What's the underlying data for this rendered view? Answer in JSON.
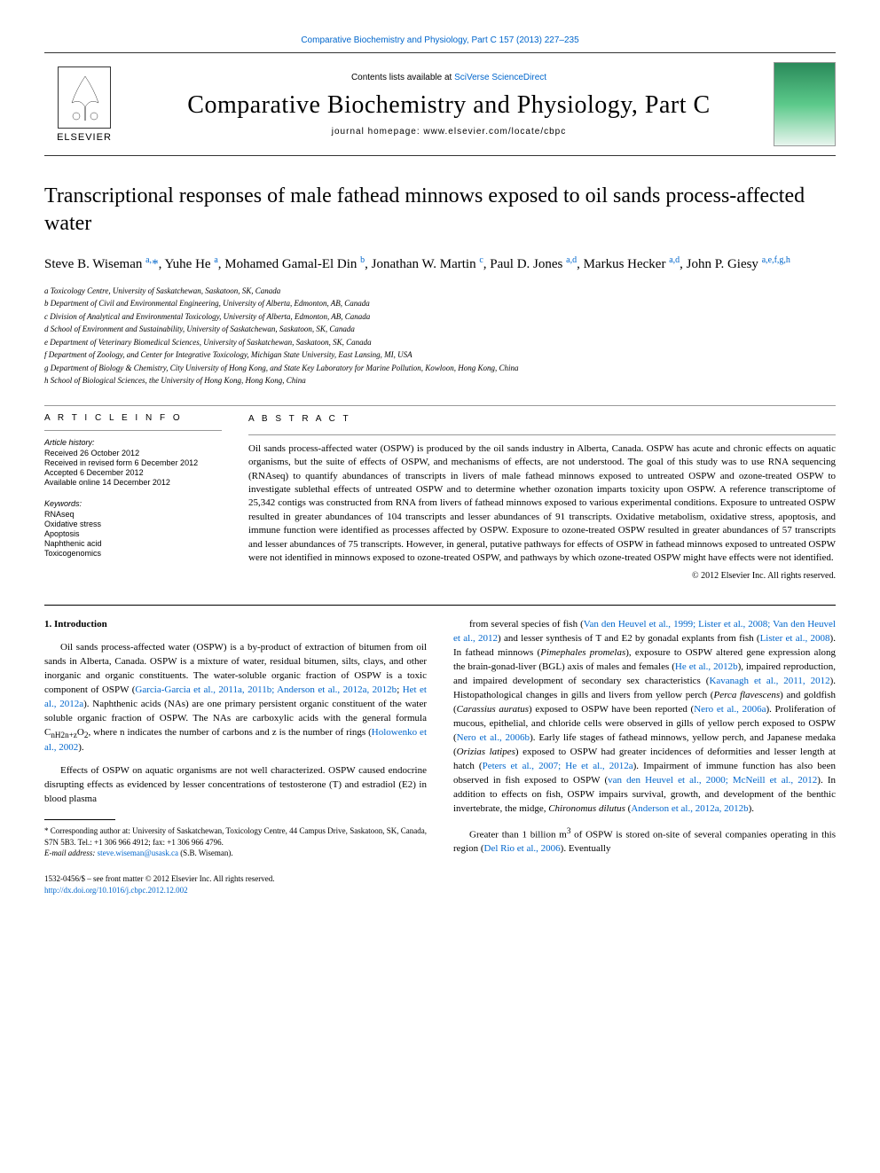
{
  "top_citation": "Comparative Biochemistry and Physiology, Part C 157 (2013) 227–235",
  "header": {
    "contents_prefix": "Contents lists available at ",
    "contents_link": "SciVerse ScienceDirect",
    "journal_name": "Comparative Biochemistry and Physiology, Part C",
    "homepage_prefix": "journal homepage: ",
    "homepage_url": "www.elsevier.com/locate/cbpc",
    "elsevier_label": "ELSEVIER"
  },
  "title": "Transcriptional responses of male fathead minnows exposed to oil sands process-affected water",
  "authors_html": "Steve B. Wiseman <sup>a,</sup><span class='star'>*</span>, Yuhe He <sup>a</sup>, Mohamed Gamal-El Din <sup>b</sup>, Jonathan W. Martin <sup>c</sup>, Paul D. Jones <sup>a,d</sup>, Markus Hecker <sup>a,d</sup>, John P. Giesy <sup>a,e,f,g,h</sup>",
  "affiliations": [
    "a Toxicology Centre, University of Saskatchewan, Saskatoon, SK, Canada",
    "b Department of Civil and Environmental Engineering, University of Alberta, Edmonton, AB, Canada",
    "c Division of Analytical and Environmental Toxicology, University of Alberta, Edmonton, AB, Canada",
    "d School of Environment and Sustainability, University of Saskatchewan, Saskatoon, SK, Canada",
    "e Department of Veterinary Biomedical Sciences, University of Saskatchewan, Saskatoon, SK, Canada",
    "f Department of Zoology, and Center for Integrative Toxicology, Michigan State University, East Lansing, MI, USA",
    "g Department of Biology & Chemistry, City University of Hong Kong, and State Key Laboratory for Marine Pollution, Kowloon, Hong Kong, China",
    "h School of Biological Sciences, the University of Hong Kong, Hong Kong, China"
  ],
  "article_info": {
    "heading": "A R T I C L E   I N F O",
    "history_label": "Article history:",
    "history": [
      "Received 26 October 2012",
      "Received in revised form 6 December 2012",
      "Accepted 6 December 2012",
      "Available online 14 December 2012"
    ],
    "keywords_label": "Keywords:",
    "keywords": [
      "RNAseq",
      "Oxidative stress",
      "Apoptosis",
      "Naphthenic acid",
      "Toxicogenomics"
    ]
  },
  "abstract": {
    "heading": "A B S T R A C T",
    "text": "Oil sands process-affected water (OSPW) is produced by the oil sands industry in Alberta, Canada. OSPW has acute and chronic effects on aquatic organisms, but the suite of effects of OSPW, and mechanisms of effects, are not understood. The goal of this study was to use RNA sequencing (RNAseq) to quantify abundances of transcripts in livers of male fathead minnows exposed to untreated OSPW and ozone-treated OSPW to investigate sublethal effects of untreated OSPW and to determine whether ozonation imparts toxicity upon OSPW. A reference transcriptome of 25,342 contigs was constructed from RNA from livers of fathead minnows exposed to various experimental conditions. Exposure to untreated OSPW resulted in greater abundances of 104 transcripts and lesser abundances of 91 transcripts. Oxidative metabolism, oxidative stress, apoptosis, and immune function were identified as processes affected by OSPW. Exposure to ozone-treated OSPW resulted in greater abundances of 57 transcripts and lesser abundances of 75 transcripts. However, in general, putative pathways for effects of OSPW in fathead minnows exposed to untreated OSPW were not identified in minnows exposed to ozone-treated OSPW, and pathways by which ozone-treated OSPW might have effects were not identified.",
    "copyright": "© 2012 Elsevier Inc. All rights reserved."
  },
  "intro": {
    "heading": "1. Introduction",
    "p1_pre": "Oil sands process-affected water (OSPW) is a by-product of extraction of bitumen from oil sands in Alberta, Canada. OSPW is a mixture of water, residual bitumen, silts, clays, and other inorganic and organic constituents. The water-soluble organic fraction of OSPW is a toxic component of OSPW (",
    "p1_link1": "Garcia-Garcia et al., 2011a, 2011b; Anderson et al., 2012a, 2012b",
    "p1_mid1": "; ",
    "p1_link2": "Het et al., 2012a",
    "p1_mid2": "). Naphthenic acids (NAs) are one primary persistent organic constituent of the water soluble organic fraction of OSPW. The NAs are carboxylic acids with the general formula C",
    "p1_sub1": "nH2n+z",
    "p1_mid3": "O",
    "p1_sub2": "2",
    "p1_mid4": ", where n indicates the number of carbons and z is the number of rings (",
    "p1_link3": "Holowenko et al., 2002",
    "p1_post": ").",
    "p2": "Effects of OSPW on aquatic organisms are not well characterized. OSPW caused endocrine disrupting effects as evidenced by lesser concentrations of testosterone (T) and estradiol (E2) in blood plasma",
    "p3_pre": "from several species of fish (",
    "p3_link1": "Van den Heuvel et al., 1999; Lister et al., 2008; Van den Heuvel et al., 2012",
    "p3_mid1": ") and lesser synthesis of T and E2 by gonadal explants from fish (",
    "p3_link2": "Lister et al., 2008",
    "p3_mid2": "). In fathead minnows (",
    "p3_sp1": "Pimephales promelas",
    "p3_mid3": "), exposure to OSPW altered gene expression along the brain-gonad-liver (BGL) axis of males and females (",
    "p3_link3": "He et al., 2012b",
    "p3_mid4": "), impaired reproduction, and impaired development of secondary sex characteristics (",
    "p3_link4": "Kavanagh et al., 2011, 2012",
    "p3_mid5": "). Histopathological changes in gills and livers from yellow perch (",
    "p3_sp2": "Perca flavescens",
    "p3_mid6": ") and goldfish (",
    "p3_sp3": "Carassius auratus",
    "p3_mid7": ") exposed to OSPW have been reported (",
    "p3_link5": "Nero et al., 2006a",
    "p3_mid8": "). Proliferation of mucous, epithelial, and chloride cells were observed in gills of yellow perch exposed to OSPW (",
    "p3_link6": "Nero et al., 2006b",
    "p3_mid9": "). Early life stages of fathead minnows, yellow perch, and Japanese medaka (",
    "p3_sp4": "Orizias latipes",
    "p3_mid10": ") exposed to OSPW had greater incidences of deformities and lesser length at hatch (",
    "p3_link7": "Peters et al., 2007; He et al., 2012a",
    "p3_mid11": "). Impairment of immune function has also been observed in fish exposed to OSPW (",
    "p3_link8": "van den Heuvel et al., 2000; McNeill et al., 2012",
    "p3_mid12": "). In addition to effects on fish, OSPW impairs survival, growth, and development of the benthic invertebrate, the midge, ",
    "p3_sp5": "Chironomus dilutus",
    "p3_mid13": " (",
    "p3_link9": "Anderson et al., 2012a, 2012b",
    "p3_post": ").",
    "p4_pre": "Greater than 1 billion m",
    "p4_sup": "3",
    "p4_mid": " of OSPW is stored on-site of several companies operating in this region (",
    "p4_link": "Del Rio et al., 2006",
    "p4_post": "). Eventually"
  },
  "footnote": {
    "corr": "* Corresponding author at: University of Saskatchewan, Toxicology Centre, 44 Campus Drive, Saskatoon, SK, Canada, S7N 5B3. Tel.: +1 306 966 4912; fax: +1 306 966 4796.",
    "email_label": "E-mail address: ",
    "email": "steve.wiseman@usask.ca",
    "email_suffix": " (S.B. Wiseman)."
  },
  "footer": {
    "issn": "1532-0456/$ – see front matter © 2012 Elsevier Inc. All rights reserved.",
    "doi_url": "http://dx.doi.org/10.1016/j.cbpc.2012.12.002"
  },
  "colors": {
    "link": "#0066cc",
    "text": "#000000",
    "rule": "#999999",
    "bg": "#ffffff"
  }
}
